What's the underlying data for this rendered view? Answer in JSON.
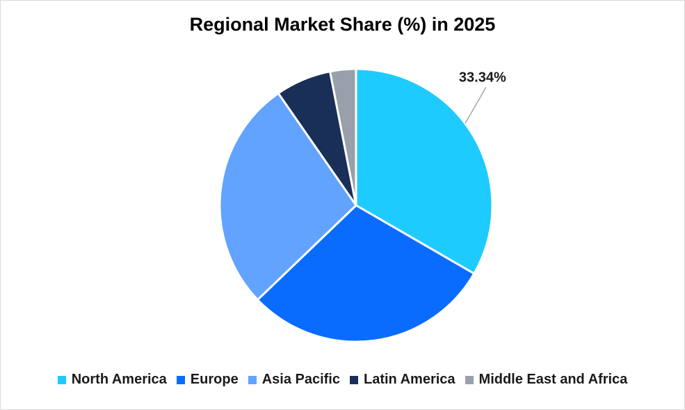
{
  "chart_data": {
    "type": "pie",
    "title": "Regional Market Share (%) in 2025",
    "slices": [
      {
        "name": "North America",
        "value": 33.34,
        "color": "#1ecbff",
        "label": "33.34%"
      },
      {
        "name": "Europe",
        "value": 29.5,
        "color": "#0a6cff",
        "label": ""
      },
      {
        "name": "Asia Pacific",
        "value": 27.5,
        "color": "#62a3ff",
        "label": ""
      },
      {
        "name": "Latin America",
        "value": 6.6,
        "color": "#1a2f57",
        "label": ""
      },
      {
        "name": "Middle East and Africa",
        "value": 3.06,
        "color": "#9aa0ab",
        "label": ""
      }
    ],
    "legend_position": "bottom"
  }
}
